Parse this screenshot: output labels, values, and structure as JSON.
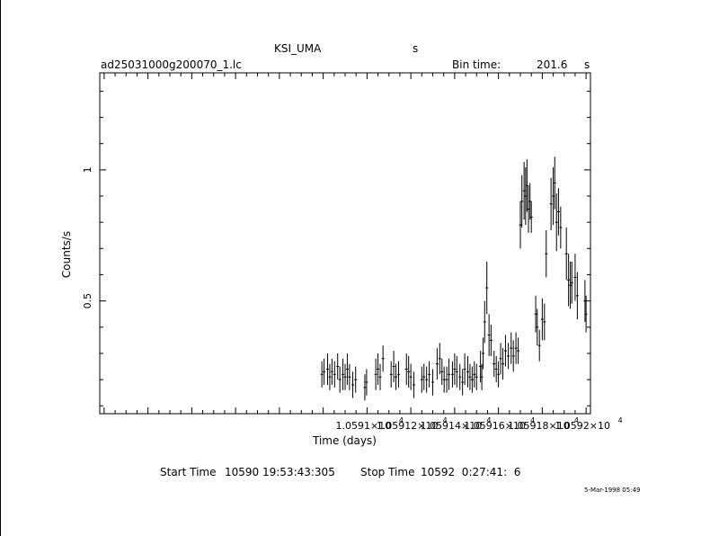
{
  "header": {
    "object": "KSI_UMA",
    "object_unit": "s",
    "filename": "ad25031000g200070_1.lc",
    "bin_label": "Bin time:",
    "bin_value": "201.6",
    "bin_unit": "s"
  },
  "footer": {
    "start_label": "Start Time",
    "start_value": "10590 19:53:43:305",
    "stop_label": "Stop Time",
    "stop_value": "10592  0:27:41:  6",
    "stamp": "5-Mar-1998 05:49"
  },
  "chart_data": {
    "type": "scatter",
    "title": "KSI_UMA",
    "xlabel": "Time (days)",
    "ylabel": "Counts/s",
    "xlim": [
      10589.78,
      10592.02
    ],
    "ylim": [
      0.07,
      1.37
    ],
    "xticks": [
      {
        "value": 10591.0,
        "label": "1.0591×10",
        "exp": "4"
      },
      {
        "value": 10591.2,
        "label": "1.05912×10",
        "exp": "4"
      },
      {
        "value": 10591.4,
        "label": "1.05914×10",
        "exp": "4"
      },
      {
        "value": 10591.6,
        "label": "1.05916×10",
        "exp": "4"
      },
      {
        "value": 10591.8,
        "label": "1.05918×10",
        "exp": "4"
      },
      {
        "value": 10592.0,
        "label": "1.0592×10",
        "exp": "4"
      }
    ],
    "yticks": [
      {
        "value": 0.5,
        "label": "0.5"
      },
      {
        "value": 1.0,
        "label": "1"
      }
    ],
    "error_bars": true,
    "grid": false,
    "series": [
      {
        "points": [
          [
            10590.794,
            0.22,
            0.05
          ],
          [
            10590.804,
            0.23,
            0.05
          ],
          [
            10590.82,
            0.24,
            0.06
          ],
          [
            10590.83,
            0.21,
            0.05
          ],
          [
            10590.84,
            0.23,
            0.05
          ],
          [
            10590.852,
            0.22,
            0.05
          ],
          [
            10590.866,
            0.25,
            0.05
          ],
          [
            10590.876,
            0.2,
            0.05
          ],
          [
            10590.89,
            0.22,
            0.06
          ],
          [
            10590.9,
            0.21,
            0.05
          ],
          [
            10590.91,
            0.24,
            0.06
          ],
          [
            10590.92,
            0.21,
            0.05
          ],
          [
            10590.935,
            0.18,
            0.05
          ],
          [
            10590.948,
            0.2,
            0.05
          ],
          [
            10590.99,
            0.17,
            0.05
          ],
          [
            10590.998,
            0.19,
            0.05
          ],
          [
            10591.04,
            0.22,
            0.06
          ],
          [
            10591.05,
            0.24,
            0.06
          ],
          [
            10591.06,
            0.21,
            0.05
          ],
          [
            10591.073,
            0.28,
            0.05
          ],
          [
            10591.11,
            0.22,
            0.05
          ],
          [
            10591.122,
            0.25,
            0.06
          ],
          [
            10591.132,
            0.21,
            0.05
          ],
          [
            10591.144,
            0.22,
            0.05
          ],
          [
            10591.18,
            0.24,
            0.06
          ],
          [
            10591.19,
            0.23,
            0.06
          ],
          [
            10591.2,
            0.21,
            0.05
          ],
          [
            10591.214,
            0.18,
            0.05
          ],
          [
            10591.25,
            0.2,
            0.05
          ],
          [
            10591.26,
            0.21,
            0.05
          ],
          [
            10591.272,
            0.2,
            0.05
          ],
          [
            10591.284,
            0.22,
            0.05
          ],
          [
            10591.3,
            0.19,
            0.05
          ],
          [
            10591.32,
            0.26,
            0.06
          ],
          [
            10591.332,
            0.28,
            0.06
          ],
          [
            10591.342,
            0.23,
            0.05
          ],
          [
            10591.352,
            0.2,
            0.05
          ],
          [
            10591.364,
            0.2,
            0.05
          ],
          [
            10591.374,
            0.22,
            0.06
          ],
          [
            10591.39,
            0.22,
            0.05
          ],
          [
            10591.4,
            0.24,
            0.06
          ],
          [
            10591.41,
            0.23,
            0.06
          ],
          [
            10591.424,
            0.21,
            0.05
          ],
          [
            10591.436,
            0.19,
            0.05
          ],
          [
            10591.446,
            0.24,
            0.06
          ],
          [
            10591.46,
            0.23,
            0.06
          ],
          [
            10591.47,
            0.21,
            0.05
          ],
          [
            10591.48,
            0.2,
            0.05
          ],
          [
            10591.49,
            0.22,
            0.05
          ],
          [
            10591.5,
            0.21,
            0.05
          ],
          [
            10591.518,
            0.25,
            0.06
          ],
          [
            10591.524,
            0.21,
            0.05
          ],
          [
            10591.53,
            0.3,
            0.06
          ],
          [
            10591.537,
            0.42,
            0.08
          ],
          [
            10591.547,
            0.55,
            0.1
          ],
          [
            10591.557,
            0.37,
            0.08
          ],
          [
            10591.566,
            0.35,
            0.06
          ],
          [
            10591.58,
            0.26,
            0.05
          ],
          [
            10591.59,
            0.24,
            0.05
          ],
          [
            10591.6,
            0.22,
            0.05
          ],
          [
            10591.61,
            0.28,
            0.06
          ],
          [
            10591.62,
            0.26,
            0.06
          ],
          [
            10591.632,
            0.31,
            0.06
          ],
          [
            10591.645,
            0.29,
            0.05
          ],
          [
            10591.658,
            0.32,
            0.06
          ],
          [
            10591.668,
            0.29,
            0.06
          ],
          [
            10591.68,
            0.32,
            0.06
          ],
          [
            10591.69,
            0.31,
            0.05
          ],
          [
            10591.7,
            0.79,
            0.09
          ],
          [
            10591.707,
            0.88,
            0.1
          ],
          [
            10591.717,
            0.92,
            0.11
          ],
          [
            10591.724,
            0.9,
            0.11
          ],
          [
            10591.73,
            0.94,
            0.1
          ],
          [
            10591.737,
            0.85,
            0.09
          ],
          [
            10591.744,
            0.88,
            0.07
          ],
          [
            10591.75,
            0.82,
            0.06
          ],
          [
            10591.77,
            0.45,
            0.07
          ],
          [
            10591.777,
            0.4,
            0.07
          ],
          [
            10591.787,
            0.33,
            0.06
          ],
          [
            10591.8,
            0.43,
            0.08
          ],
          [
            10591.81,
            0.42,
            0.07
          ],
          [
            10591.818,
            0.68,
            0.09
          ],
          [
            10591.84,
            0.87,
            0.1
          ],
          [
            10591.85,
            0.9,
            0.11
          ],
          [
            10591.857,
            0.95,
            0.1
          ],
          [
            10591.865,
            0.8,
            0.11
          ],
          [
            10591.874,
            0.84,
            0.09
          ],
          [
            10591.884,
            0.78,
            0.08
          ],
          [
            10591.91,
            0.68,
            0.1
          ],
          [
            10591.92,
            0.58,
            0.1
          ],
          [
            10591.928,
            0.56,
            0.09
          ],
          [
            10591.935,
            0.57,
            0.08
          ],
          [
            10591.95,
            0.59,
            0.09
          ],
          [
            10591.96,
            0.52,
            0.09
          ],
          [
            10591.995,
            0.5,
            0.08
          ],
          [
            10592.0,
            0.45,
            0.07
          ]
        ]
      }
    ]
  }
}
